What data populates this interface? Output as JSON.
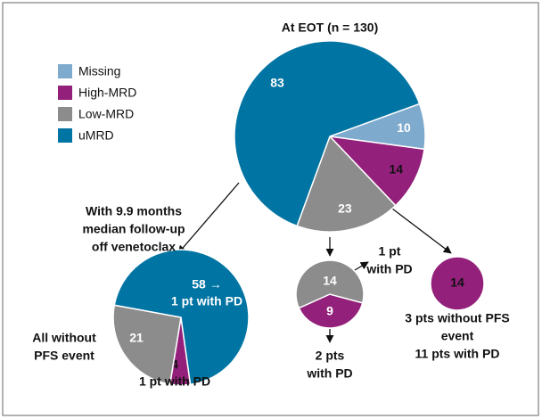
{
  "chart_data": [
    {
      "type": "pie",
      "title": [
        "At EOT (n = 130)"
      ],
      "categories": [
        "Missing",
        "High-MRD",
        "Low-MRD",
        "uMRD"
      ],
      "values": [
        10,
        14,
        23,
        83
      ],
      "colors": [
        "#7eaacd",
        "#93207a",
        "#8c8c8c",
        "#0074a3"
      ],
      "legend": "top-left"
    },
    {
      "type": "pie",
      "title": [
        "With 9.9 months",
        "median follow-up",
        "off venetoclax"
      ],
      "categories": [
        "High-MRD",
        "Low-MRD",
        "uMRD"
      ],
      "values": [
        4,
        21,
        58
      ],
      "value_labels": [
        "4",
        "21",
        "58 →"
      ],
      "colors": [
        "#93207a",
        "#8c8c8c",
        "#0074a3"
      ],
      "annotations": [
        [
          "1 pt with PD"
        ],
        [
          "All without",
          "PFS event"
        ],
        [
          "1 pt with PD"
        ]
      ]
    },
    {
      "type": "pie",
      "categories": [
        "High-MRD",
        "Low-MRD"
      ],
      "values": [
        9,
        14
      ],
      "colors": [
        "#93207a",
        "#8c8c8c"
      ],
      "annotations": [
        [
          "1 pt",
          "with PD"
        ],
        [
          "2 pts",
          "with PD"
        ]
      ]
    },
    {
      "type": "pie",
      "categories": [
        "High-MRD"
      ],
      "values": [
        14
      ],
      "colors": [
        "#93207a"
      ],
      "annotations": [
        [
          "3 pts without PFS",
          "event",
          "11 pts with PD"
        ]
      ]
    }
  ]
}
